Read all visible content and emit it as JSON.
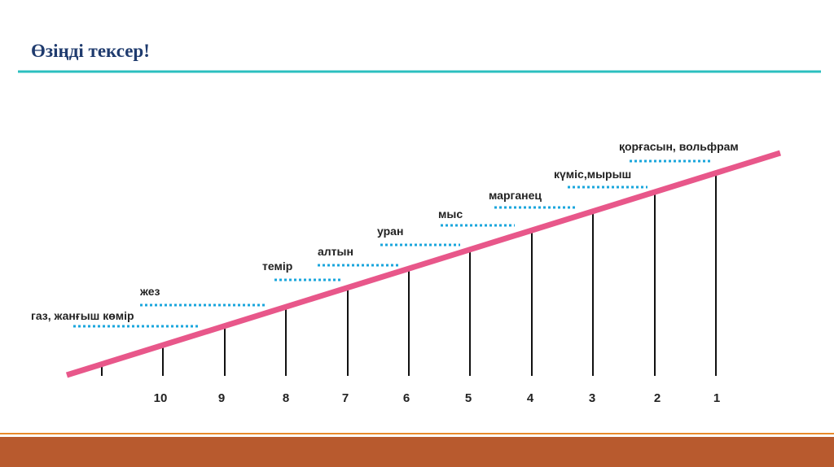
{
  "header": {
    "title": "Өзіңді тексер!"
  },
  "scale": {
    "labels": [
      "10",
      "9",
      "8",
      "7",
      "6",
      "5",
      "4",
      "3",
      "2",
      "1"
    ]
  },
  "materials": [
    "газ, жанғыш көмір",
    "жез",
    "темір",
    "алтын",
    "уран",
    "мыс",
    "марганец",
    "күміс,мырыш",
    "қорғасын, вольфрам"
  ]
}
